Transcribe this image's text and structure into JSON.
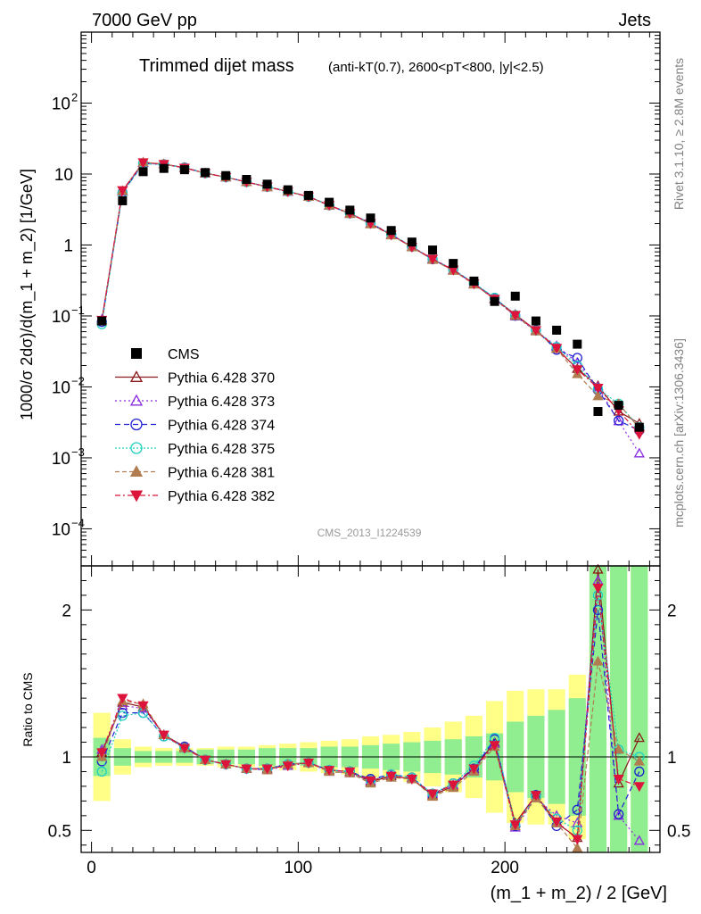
{
  "header": {
    "left": "7000 GeV pp",
    "right": "Jets"
  },
  "side_labels": {
    "rivet": "Rivet 3.1.10, ≥ 2.8M events",
    "mcplots": "mcplots.cern.ch [arXiv:1306.3436]"
  },
  "watermark": "CMS_2013_I1224539",
  "colors": {
    "CMS": "#000000",
    "P370": "#8b1a1a",
    "P373": "#8a2be2",
    "P374": "#2020d0",
    "P375": "#20d0c0",
    "P381": "#b07d50",
    "P382": "#dc143c",
    "band_inner": "#90ee90",
    "band_outer": "#ffff88"
  },
  "chart_data": {
    "type": "line",
    "title": "Trimmed dijet mass",
    "title_suffix": "(anti-kT(0.7), 2600<pT<800, |y|<2.5)",
    "xlabel": "(m_1 + m_2) / 2 [GeV]",
    "ylabel": "1000/σ 2dσ)/d(m_1 + m_2) [1/GeV]",
    "ratio_ylabel": "Ratio to CMS",
    "xlim": [
      -5,
      275
    ],
    "ylim": [
      3e-05,
      1000
    ],
    "yscale": "log",
    "ratio_ylim": [
      0.35,
      2.3
    ],
    "x_ticks": [
      "0",
      "100",
      "200"
    ],
    "y_ticks": [
      "10^-4",
      "10^-3",
      "10^-2",
      "10^-1",
      "1",
      "10",
      "10^2"
    ],
    "ratio_ticks": [
      "0.5",
      "1",
      "2"
    ],
    "legend_position": "middle-left",
    "x": [
      5,
      15,
      25,
      35,
      45,
      55,
      65,
      75,
      85,
      95,
      105,
      115,
      125,
      135,
      145,
      155,
      165,
      175,
      185,
      195,
      205,
      215,
      225,
      235,
      245,
      255,
      265
    ],
    "data": {
      "name": "CMS",
      "values": [
        0.085,
        4.2,
        10.8,
        12.0,
        11.5,
        10.5,
        9.5,
        8.4,
        7.2,
        6.0,
        5.0,
        4.0,
        3.1,
        2.4,
        1.6,
        1.1,
        0.85,
        0.55,
        0.31,
        0.16,
        0.19,
        0.085,
        0.063,
        0.04,
        0.0045,
        0.0055,
        0.0027
      ],
      "band_inner": [
        0.13,
        0.06,
        0.04,
        0.04,
        0.04,
        0.05,
        0.05,
        0.05,
        0.06,
        0.06,
        0.06,
        0.07,
        0.07,
        0.08,
        0.09,
        0.1,
        0.11,
        0.12,
        0.14,
        0.16,
        0.24,
        0.28,
        0.32,
        0.4,
        0.85,
        0.85,
        0.85
      ],
      "band_outer": [
        0.3,
        0.12,
        0.07,
        0.06,
        0.06,
        0.06,
        0.07,
        0.07,
        0.08,
        0.09,
        0.1,
        0.11,
        0.12,
        0.14,
        0.15,
        0.17,
        0.2,
        0.24,
        0.28,
        0.38,
        0.45,
        0.46,
        0.46,
        0.56,
        1.0,
        1.0,
        1.0
      ]
    },
    "series": [
      {
        "name": "Pythia 6.428 370",
        "marker": "triangle-open",
        "dash": "",
        "color_key": "P370",
        "ratio": [
          1.03,
          1.37,
          1.34,
          1.15,
          1.07,
          0.98,
          0.95,
          0.92,
          0.92,
          0.95,
          0.96,
          0.91,
          0.9,
          0.83,
          0.87,
          0.85,
          0.74,
          0.8,
          0.92,
          1.1,
          0.55,
          0.74,
          0.55,
          0.45,
          2.3,
          0.82,
          1.13
        ]
      },
      {
        "name": "Pythia 6.428 373",
        "marker": "triangle-open",
        "dash": "2,3",
        "color_key": "P373",
        "ratio": [
          1.05,
          1.35,
          1.33,
          1.15,
          1.06,
          0.98,
          0.95,
          0.92,
          0.91,
          0.94,
          0.96,
          0.9,
          0.89,
          0.84,
          0.88,
          0.86,
          0.75,
          0.81,
          0.91,
          1.09,
          0.52,
          0.72,
          0.6,
          0.55,
          2.2,
          0.6,
          0.43
        ]
      },
      {
        "name": "Pythia 6.428 374",
        "marker": "circle-open",
        "dash": "6,4",
        "color_key": "P374",
        "ratio": [
          0.97,
          1.3,
          1.3,
          1.14,
          1.07,
          0.98,
          0.95,
          0.92,
          0.92,
          0.95,
          0.96,
          0.91,
          0.9,
          0.85,
          0.88,
          0.86,
          0.74,
          0.82,
          0.92,
          1.12,
          0.53,
          0.74,
          0.53,
          0.64,
          2.0,
          0.61,
          0.9
        ]
      },
      {
        "name": "Pythia 6.428 375",
        "marker": "circle-open",
        "dash": "2,2",
        "color_key": "P375",
        "ratio": [
          0.9,
          1.28,
          1.3,
          1.14,
          1.06,
          0.98,
          0.95,
          0.92,
          0.92,
          0.95,
          0.96,
          0.91,
          0.9,
          0.84,
          0.88,
          0.86,
          0.75,
          0.82,
          0.94,
          1.13,
          0.54,
          0.73,
          0.58,
          0.5,
          2.1,
          1.05,
          1.0
        ]
      },
      {
        "name": "Pythia 6.428 381",
        "marker": "triangle-filled",
        "dash": "5,3",
        "color_key": "P381",
        "ratio": [
          1.0,
          1.38,
          1.36,
          1.15,
          1.06,
          0.98,
          0.95,
          0.92,
          0.91,
          0.95,
          0.96,
          0.9,
          0.89,
          0.82,
          0.86,
          0.85,
          0.73,
          0.79,
          0.9,
          1.07,
          0.53,
          0.72,
          0.55,
          0.38,
          1.65,
          1.05,
          0.97
        ]
      },
      {
        "name": "Pythia 6.428 382",
        "marker": "triangle-down-filled",
        "dash": "6,3,2,3",
        "color_key": "P382",
        "ratio": [
          1.03,
          1.4,
          1.35,
          1.15,
          1.06,
          0.98,
          0.95,
          0.92,
          0.92,
          0.94,
          0.96,
          0.91,
          0.9,
          0.84,
          0.87,
          0.85,
          0.75,
          0.81,
          0.92,
          1.08,
          0.54,
          0.74,
          0.56,
          0.44,
          2.15,
          0.85,
          0.8
        ]
      }
    ]
  }
}
